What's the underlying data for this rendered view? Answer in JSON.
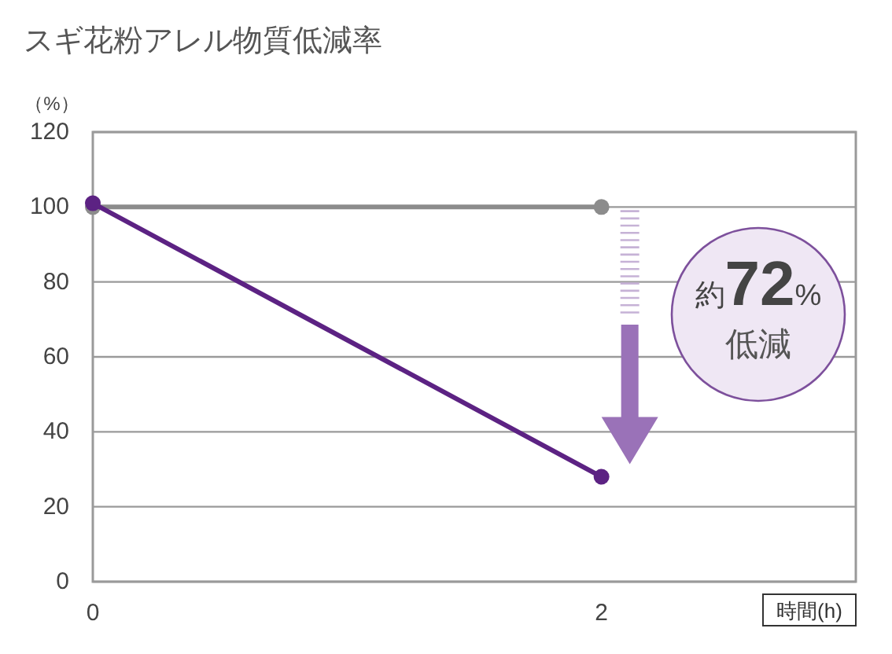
{
  "chart_data": {
    "type": "line",
    "title": "スギ花粉アレル物質低減率",
    "ylabel": "（%）",
    "xlabel": "時間(h)",
    "x": [
      0,
      2
    ],
    "series": [
      {
        "color": "#8c8c8c",
        "values": [
          100,
          100
        ]
      },
      {
        "color": "#5c2283",
        "values": [
          101,
          28
        ]
      }
    ],
    "xlim": [
      0,
      3
    ],
    "xticks": [
      0,
      2
    ],
    "ylim": [
      0,
      120
    ],
    "yticks": [
      0,
      20,
      40,
      60,
      80,
      100,
      120
    ],
    "grid": "y",
    "marker": "circle",
    "annotations": [
      "約72%",
      "低減"
    ]
  }
}
